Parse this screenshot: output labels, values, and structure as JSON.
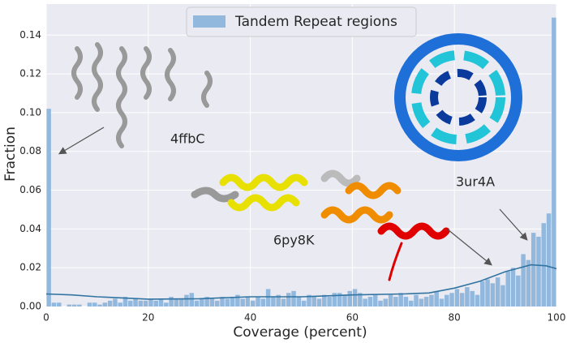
{
  "chart_data": {
    "type": "histogram",
    "xlabel": "Coverage (percent)",
    "ylabel": "Fraction",
    "legend": {
      "position": "upper center",
      "label": "Tandem Repeat regions"
    },
    "color": "#93b8dd",
    "grid": true,
    "bins": [
      0,
      1,
      2,
      3,
      4,
      5,
      6,
      7,
      8,
      9,
      10,
      11,
      12,
      13,
      14,
      15,
      16,
      17,
      18,
      19,
      20,
      21,
      22,
      23,
      24,
      25,
      26,
      27,
      28,
      29,
      30,
      31,
      32,
      33,
      34,
      35,
      36,
      37,
      38,
      39,
      40,
      41,
      42,
      43,
      44,
      45,
      46,
      47,
      48,
      49,
      50,
      51,
      52,
      53,
      54,
      55,
      56,
      57,
      58,
      59,
      60,
      61,
      62,
      63,
      64,
      65,
      66,
      67,
      68,
      69,
      70,
      71,
      72,
      73,
      74,
      75,
      76,
      77,
      78,
      79,
      80,
      81,
      82,
      83,
      84,
      85,
      86,
      87,
      88,
      89,
      90,
      91,
      92,
      93,
      94,
      95,
      96,
      97,
      98,
      99,
      100
    ],
    "values": [
      0.102,
      0.002,
      0.002,
      0,
      0.001,
      0.001,
      0.001,
      0,
      0.002,
      0.002,
      0.001,
      0.002,
      0.003,
      0.004,
      0.002,
      0.005,
      0.003,
      0.004,
      0.003,
      0.003,
      0.004,
      0.003,
      0.004,
      0.002,
      0.005,
      0.004,
      0.004,
      0.006,
      0.007,
      0.003,
      0.004,
      0.005,
      0.004,
      0.003,
      0.005,
      0.004,
      0.005,
      0.006,
      0.004,
      0.005,
      0.003,
      0.005,
      0.004,
      0.009,
      0.005,
      0.006,
      0.004,
      0.007,
      0.008,
      0.005,
      0.003,
      0.006,
      0.005,
      0.004,
      0.006,
      0.005,
      0.007,
      0.007,
      0.006,
      0.008,
      0.009,
      0.007,
      0.004,
      0.005,
      0.006,
      0.003,
      0.004,
      0.006,
      0.005,
      0.007,
      0.005,
      0.003,
      0.006,
      0.004,
      0.005,
      0.006,
      0.008,
      0.004,
      0.006,
      0.007,
      0.009,
      0.007,
      0.01,
      0.008,
      0.006,
      0.013,
      0.014,
      0.012,
      0.015,
      0.011,
      0.018,
      0.02,
      0.016,
      0.027,
      0.024,
      0.038,
      0.036,
      0.043,
      0.048,
      0.149
    ],
    "line": {
      "color": "#3274a1",
      "x": [
        0,
        5,
        10,
        20,
        30,
        40,
        50,
        60,
        70,
        75,
        80,
        85,
        90,
        95,
        98,
        100
      ],
      "values": [
        0.0065,
        0.006,
        0.005,
        0.0038,
        0.004,
        0.005,
        0.005,
        0.006,
        0.0065,
        0.007,
        0.0095,
        0.013,
        0.018,
        0.0215,
        0.021,
        0.0195
      ]
    },
    "xlim": [
      0,
      100
    ],
    "xticks": [
      0,
      20,
      40,
      60,
      80,
      100
    ],
    "ylim": [
      0,
      0.156
    ],
    "yticks": [
      {
        "value": 0,
        "label": "0.00"
      },
      {
        "value": 0.02,
        "label": "0.02"
      },
      {
        "value": 0.04,
        "label": "0.04"
      },
      {
        "value": 0.06,
        "label": "0.06"
      },
      {
        "value": 0.08,
        "label": "0.08"
      },
      {
        "value": 0.1,
        "label": "0.10"
      },
      {
        "value": 0.12,
        "label": "0.12"
      },
      {
        "value": 0.14,
        "label": "0.14"
      }
    ],
    "annotations": [
      "4ffbC",
      "6py8K",
      "3ur4A"
    ]
  }
}
